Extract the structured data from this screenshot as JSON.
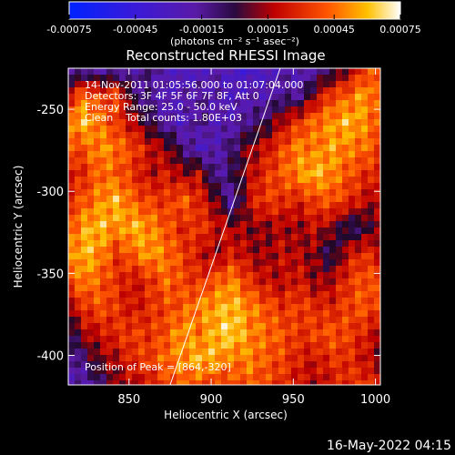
{
  "chart_data": {
    "type": "heatmap",
    "title": "Reconstructed RHESSI Image",
    "xlabel": "Heliocentric X (arcsec)",
    "ylabel": "Heliocentric Y (arcsec)",
    "xlim": [
      813,
      1003
    ],
    "ylim": [
      -418,
      -225
    ],
    "x_ticks": [
      850,
      900,
      950,
      1000
    ],
    "y_ticks": [
      -250,
      -300,
      -350,
      -400
    ],
    "colorbar": {
      "range": [
        -0.00075,
        0.00075
      ],
      "ticks": [
        "-0.00075",
        "-0.00045",
        "-0.00015",
        "0.00015",
        "0.00045",
        "0.00075"
      ],
      "units": "(photons cm⁻² s⁻¹ asec⁻²)"
    },
    "annotations": {
      "time_range": "14-Nov-2011 01:05:56.000 to 01:07:04.000",
      "detectors": "Detectors: 3F 4F 5F 6F 7F 8F, Att 0",
      "energy_range": "Energy Range: 25.0 - 50.0 keV",
      "method_counts": "Clean    Total counts: 1.80E+03",
      "peak_position": "Position of Peak = [864,-320]"
    },
    "limb_line": {
      "x": [
        875,
        942
      ],
      "y": [
        -418,
        -225
      ]
    },
    "grid": false,
    "image_layout": [
      [
        -0.00025,
        -0.00022,
        -0.0002,
        -0.00026,
        -0.00018,
        -0.00012,
        -0.00022,
        -0.00035,
        -0.00028,
        -0.00022,
        -0.0003,
        -0.0004,
        -0.0003,
        -0.0002,
        -0.00028,
        -0.00018,
        -0.00012,
        8e-05,
        0.0003,
        0.0004
      ],
      [
        0.0002,
        0.00045,
        0.0003,
        0.00038,
        -0.0001,
        -0.00015,
        -0.00028,
        -0.0002,
        -0.00018,
        -0.0002,
        -0.0003,
        -0.0002,
        -0.00025,
        -0.00015,
        -0.0002,
        0.0001,
        0.00035,
        0.0004,
        0.00055,
        0.00035
      ],
      [
        0.0005,
        0.0006,
        0.00045,
        0.0003,
        0.00015,
        -5e-05,
        -0.0002,
        -0.0003,
        -0.0001,
        -0.00025,
        -0.00022,
        -0.00015,
        -5e-05,
        0.00015,
        0.0003,
        0.00045,
        0.0005,
        0.0006,
        0.0005,
        0.0004
      ],
      [
        0.00035,
        0.0004,
        0.00052,
        0.00045,
        0.00035,
        0.0002,
        0.0001,
        -0.0001,
        -0.0003,
        -0.00022,
        -0.0001,
        0.0001,
        0.0002,
        0.00035,
        0.0005,
        0.00045,
        0.00055,
        0.00048,
        0.00045,
        0.00035
      ],
      [
        0.0002,
        0.0003,
        0.00045,
        0.0004,
        0.0003,
        0.00015,
        0.00025,
        0.0001,
        0.0002,
        -0.0002,
        -5e-05,
        0.00015,
        0.0003,
        0.0004,
        0.0005,
        0.0006,
        0.0005,
        0.0004,
        0.0003,
        0.00025
      ],
      [
        0.0003,
        0.0004,
        0.0005,
        0.0006,
        0.0004,
        0.00035,
        0.0003,
        0.00045,
        0.00025,
        0.0001,
        -0.00025,
        0.0002,
        0.00035,
        0.0003,
        0.00025,
        0.00035,
        0.0004,
        0.0003,
        0.0002,
        0.0001
      ],
      [
        0.0004,
        0.00055,
        0.0006,
        0.0005,
        0.0006,
        0.0005,
        0.0004,
        0.00025,
        0.00035,
        0.0002,
        0.00015,
        0.0001,
        0.0001,
        0.00015,
        0.0001,
        0.0002,
        0.0001,
        -0.0001,
        -5e-05,
        0.00015
      ],
      [
        0.00045,
        0.0006,
        0.0005,
        0.0003,
        0.00045,
        0.00055,
        0.00045,
        0.00035,
        0.0002,
        0.0001,
        0.00025,
        0.00015,
        0.0001,
        0.0002,
        0.00015,
        0.0001,
        -0.0001,
        0.0002,
        0.0003,
        0.0002
      ],
      [
        0.00035,
        0.0005,
        0.0004,
        0.0003,
        0.0002,
        0.0003,
        0.00045,
        0.00035,
        0.0003,
        0.0004,
        0.0005,
        0.0003,
        0.0002,
        0.00015,
        0.00025,
        0.0001,
        0.00015,
        0.0003,
        0.0004,
        0.00035
      ],
      [
        0.00015,
        0.0003,
        0.0004,
        0.0003,
        0.0002,
        0.0003,
        0.00035,
        0.0004,
        0.0005,
        0.00055,
        0.0006,
        0.0005,
        0.0004,
        0.0003,
        0.00035,
        0.0003,
        0.00025,
        0.00035,
        0.0004,
        0.0003
      ],
      [
        -0.0001,
        0.00015,
        0.0002,
        0.0003,
        0.00035,
        0.0003,
        0.0004,
        0.00055,
        0.00045,
        0.0006,
        0.00065,
        0.0005,
        0.00045,
        0.0004,
        0.0003,
        0.00035,
        0.0004,
        0.00035,
        0.00025,
        0.00015
      ],
      [
        -0.0002,
        -0.0001,
        0.0001,
        0.00015,
        0.0003,
        0.00035,
        0.00045,
        0.0005,
        0.0006,
        0.00055,
        0.00045,
        0.0005,
        0.0004,
        0.00035,
        0.00025,
        0.0002,
        0.0003,
        0.0003,
        0.0002,
        0.0001
      ],
      [
        -0.00025,
        -0.0002,
        -0.0001,
        0.0001,
        0.00015,
        0.0002,
        0.00035,
        0.0004,
        0.00035,
        0.0003,
        0.00035,
        0.0004,
        0.00035,
        0.0003,
        0.0002,
        0.00015,
        0.0002,
        0.0003,
        0.00035,
        0.0002
      ]
    ]
  },
  "footer": {
    "timestamp": "16-May-2022 04:15"
  }
}
